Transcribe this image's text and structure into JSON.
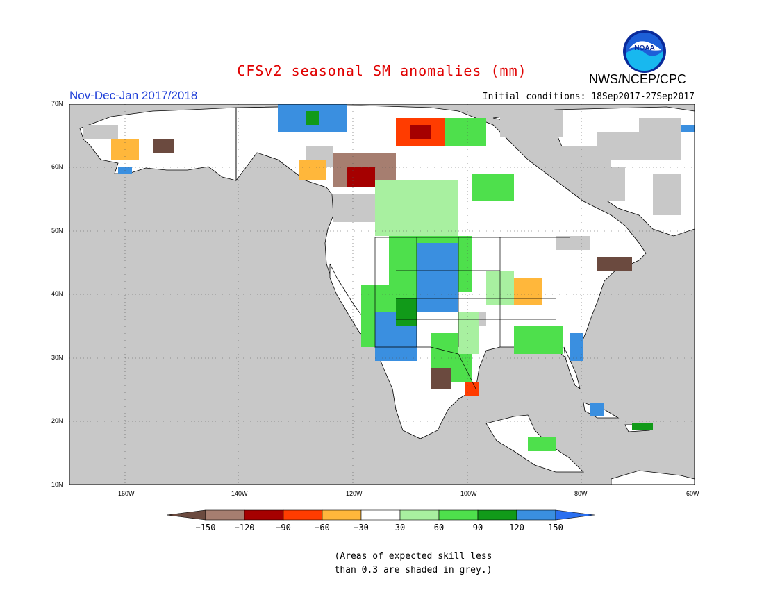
{
  "header": {
    "title": "CFSv2 seasonal SM anomalies (mm)",
    "organization": "NWS/NCEP/CPC",
    "logo_text": "NOAA",
    "season": "Nov-Dec-Jan 2017/2018",
    "initial_conditions": "Initial conditions: 18Sep2017-27Sep2017"
  },
  "map": {
    "lon_range": [
      -172,
      -60
    ],
    "lat_range": [
      10,
      70
    ],
    "lat_ticks": [
      "70N",
      "60N",
      "50N",
      "40N",
      "30N",
      "20N",
      "10N"
    ],
    "lon_ticks": [
      "160W",
      "140W",
      "120W",
      "100W",
      "80W",
      "60W"
    ],
    "grid": "dotted",
    "ocean_color": "#c8c8c8",
    "land_color": "#ffffff",
    "masked_color": "#c8c8c8"
  },
  "colorbar": {
    "labels": [
      "-150",
      "-120",
      "-90",
      "-60",
      "-30",
      "30",
      "60",
      "90",
      "120",
      "150"
    ],
    "colors": [
      "#6b4a3f",
      "#a67e70",
      "#a50000",
      "#ff3c00",
      "#ffb73b",
      "#ffffff",
      "#a8f0a0",
      "#4ee04c",
      "#119a19",
      "#3a8fe0",
      "#2a6ff0"
    ]
  },
  "footnote": {
    "line1": "(Areas of expected skill less",
    "line2": "than 0.3 are shaded in grey.)"
  }
}
